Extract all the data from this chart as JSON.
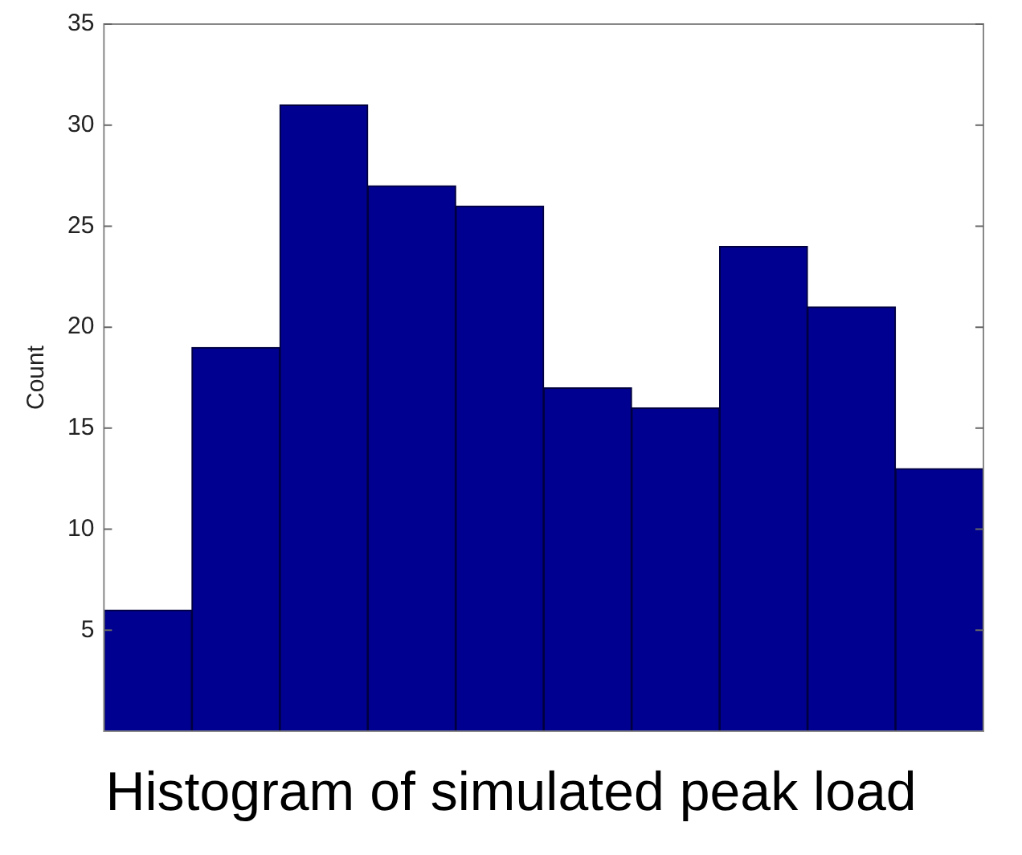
{
  "chart_data": {
    "type": "bar",
    "categories": [
      null,
      null,
      null,
      null,
      null,
      null,
      null,
      null,
      null,
      null
    ],
    "values": [
      6,
      19,
      31,
      27,
      26,
      17,
      16,
      24,
      21,
      13
    ],
    "color": "#000090",
    "ylabel": "Count",
    "ylim": [
      0,
      35
    ],
    "yticks": [
      5,
      10,
      15,
      20,
      25,
      30,
      35
    ],
    "grid": false,
    "legend": false,
    "tick_labels": "y",
    "annotations": [
      "Histogram of simulated peak load"
    ]
  }
}
